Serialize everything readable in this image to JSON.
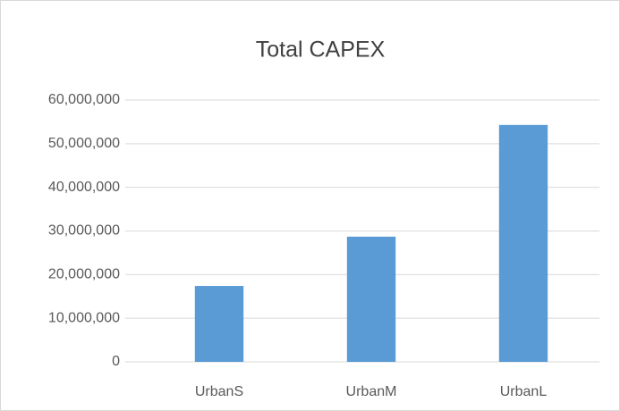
{
  "chart_data": {
    "type": "bar",
    "title": "Total CAPEX",
    "categories": [
      "UrbanS",
      "UrbanM",
      "UrbanL"
    ],
    "values": [
      17400000,
      28700000,
      54300000
    ],
    "color": "#5b9bd5",
    "ylim": [
      0,
      60000000
    ],
    "yticks": [
      0,
      {
        "value": 10000000,
        "label": "10,000,000"
      },
      {
        "value": 20000000,
        "label": "20,000,000"
      },
      {
        "value": 30000000,
        "label": "30,000,000"
      },
      {
        "value": 40000000,
        "label": "40,000,000"
      },
      {
        "value": 50000000,
        "label": "50,000,000"
      },
      {
        "value": 60000000,
        "label": "60,000,000"
      }
    ],
    "grid": true
  }
}
